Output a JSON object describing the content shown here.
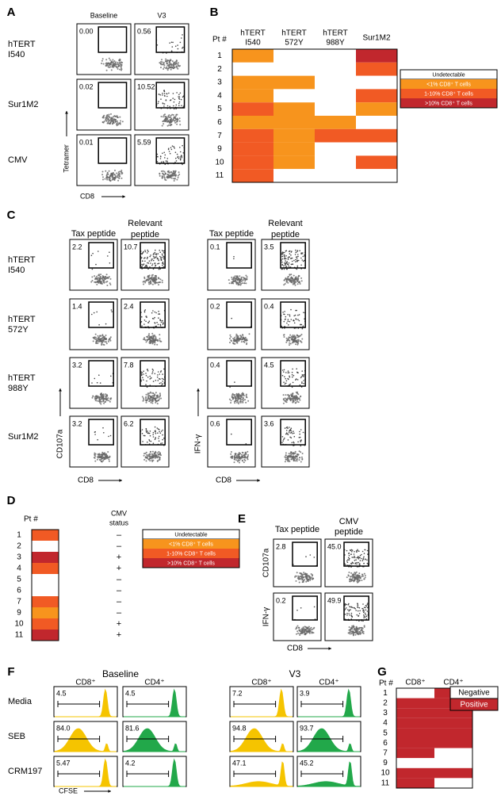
{
  "A": {
    "label": "A",
    "columns": [
      "Baseline",
      "V3"
    ],
    "rows": [
      {
        "name": [
          "hTERT",
          "I540"
        ],
        "values": [
          "0.00",
          "0.56"
        ]
      },
      {
        "name": [
          "Sur1M2"
        ],
        "values": [
          "0.02",
          "10.52"
        ]
      },
      {
        "name": [
          "CMV"
        ],
        "values": [
          "0.01",
          "5.59"
        ]
      }
    ],
    "y_axis": "Tetramer",
    "x_axis": "CD8"
  },
  "B": {
    "label": "B",
    "row_header": "Pt #",
    "columns": [
      [
        "hTERT",
        "I540"
      ],
      [
        "hTERT",
        "572Y"
      ],
      [
        "hTERT",
        "988Y"
      ],
      [
        "Sur1M2"
      ]
    ],
    "patients": [
      "1",
      "2",
      "3",
      "4",
      "5",
      "6",
      "7",
      "9",
      "10",
      "11"
    ],
    "levels": [
      [
        1,
        0,
        0,
        3
      ],
      [
        0,
        0,
        0,
        2
      ],
      [
        1,
        1,
        0,
        0
      ],
      [
        1,
        0,
        0,
        2
      ],
      [
        2,
        1,
        0,
        1
      ],
      [
        1,
        1,
        1,
        0
      ],
      [
        2,
        1,
        2,
        2
      ],
      [
        2,
        1,
        0,
        0
      ],
      [
        2,
        1,
        0,
        2
      ],
      [
        2,
        0,
        0,
        0
      ]
    ]
  },
  "response_legend": {
    "items": [
      "Undetectable",
      "<1% CD8⁺ T cells",
      "1-10% CD8⁺ T cells",
      ">10% CD8⁺ T cells"
    ],
    "colors": [
      "#ffffff",
      "#f7941d",
      "#f15a24",
      "#c1272d"
    ]
  },
  "C": {
    "label": "C",
    "rows": [
      [
        "hTERT",
        "I540"
      ],
      [
        "hTERT",
        "572Y"
      ],
      [
        "hTERT",
        "988Y"
      ],
      [
        "Sur1M2"
      ]
    ],
    "groups": [
      {
        "columns": [
          [
            "Tax peptide"
          ],
          [
            "Relevant",
            "peptide"
          ]
        ],
        "y_axis": "CD107a",
        "x_axis": "CD8",
        "values": [
          [
            "2.2",
            "10.7"
          ],
          [
            "1.4",
            "2.4"
          ],
          [
            "3.2",
            "7.8"
          ],
          [
            "3.2",
            "6.2"
          ]
        ]
      },
      {
        "columns": [
          [
            "Tax peptide"
          ],
          [
            "Relevant",
            "peptide"
          ]
        ],
        "y_axis": "IFN-γ",
        "x_axis": "CD8",
        "values": [
          [
            "0.1",
            "3.5"
          ],
          [
            "0.2",
            "0.4"
          ],
          [
            "0.4",
            "4.5"
          ],
          [
            "0.6",
            "3.6"
          ]
        ]
      }
    ]
  },
  "D": {
    "label": "D",
    "row_header": "Pt #",
    "status_header": [
      "CMV",
      "status"
    ],
    "patients": [
      "1",
      "2",
      "3",
      "4",
      "5",
      "6",
      "7",
      "9",
      "10",
      "11"
    ],
    "levels": [
      2,
      0,
      3,
      2,
      0,
      0,
      2,
      1,
      2,
      3
    ],
    "cmv": [
      "–",
      "–",
      "+",
      "+",
      "–",
      "–",
      "–",
      "–",
      "+",
      "+"
    ]
  },
  "E": {
    "label": "E",
    "columns": [
      [
        "Tax peptide"
      ],
      [
        "CMV",
        "peptide"
      ]
    ],
    "rows": [
      {
        "name": "CD107a",
        "values": [
          "2.8",
          "45.0"
        ]
      },
      {
        "name": "IFN-γ",
        "values": [
          "0.2",
          "49.9"
        ]
      }
    ],
    "x_axis": "CD8"
  },
  "F": {
    "label": "F",
    "columns": [
      "CD8⁺",
      "CD4⁺"
    ],
    "colors": [
      "#f5c400",
      "#22a84a"
    ],
    "rows": [
      "Media",
      "SEB",
      "CRM197"
    ],
    "groups": [
      {
        "name": "Baseline",
        "values": [
          [
            "4.5",
            "4.5"
          ],
          [
            "84.0",
            "81.6"
          ],
          [
            "5.47",
            "4.2"
          ]
        ]
      },
      {
        "name": "V3",
        "values": [
          [
            "7.2",
            "3.9"
          ],
          [
            "94.8",
            "93.7"
          ],
          [
            "47.1",
            "45.2"
          ]
        ]
      }
    ],
    "x_axis": "CFSE"
  },
  "G": {
    "label": "G",
    "row_header": "Pt #",
    "columns": [
      "CD8⁺",
      "CD4⁺"
    ],
    "patients": [
      "1",
      "2",
      "3",
      "4",
      "5",
      "6",
      "7",
      "9",
      "10",
      "11"
    ],
    "status": [
      [
        0,
        1
      ],
      [
        1,
        1
      ],
      [
        1,
        1
      ],
      [
        1,
        1
      ],
      [
        1,
        1
      ],
      [
        1,
        1
      ],
      [
        1,
        0
      ],
      [
        0,
        0
      ],
      [
        1,
        1
      ],
      [
        1,
        0
      ]
    ],
    "legend": [
      "Negative",
      "Positive"
    ],
    "colors": [
      "#ffffff",
      "#c1272d"
    ]
  }
}
